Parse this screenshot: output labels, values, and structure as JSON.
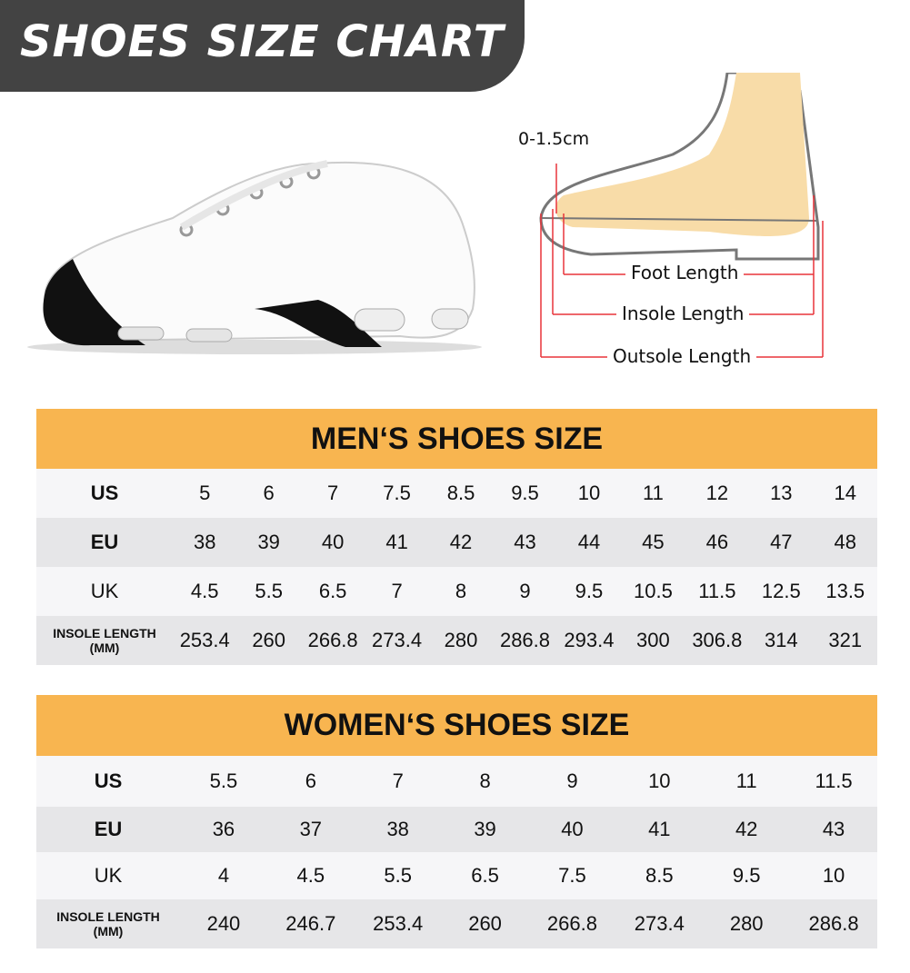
{
  "header": {
    "title": "SHOES SIZE CHART"
  },
  "diagram": {
    "toe_gap": "0-1.5cm",
    "foot_length": "Foot Length",
    "insole_length": "Insole Length",
    "outsole_length": "Outsole Length"
  },
  "colors": {
    "banner": "#434343",
    "table_header": "#F8B550",
    "row_light": "#F6F6F8",
    "row_dark": "#E6E6E8",
    "measure_lines": "#E8343A",
    "foot": "#F8DCA8"
  },
  "men": {
    "title": "MEN‘S SHOES SIZE",
    "rows": [
      {
        "label": "US",
        "values": [
          "5",
          "6",
          "7",
          "7.5",
          "8.5",
          "9.5",
          "10",
          "11",
          "12",
          "13",
          "14"
        ]
      },
      {
        "label": "EU",
        "values": [
          "38",
          "39",
          "40",
          "41",
          "42",
          "43",
          "44",
          "45",
          "46",
          "47",
          "48"
        ]
      },
      {
        "label": "UK",
        "values": [
          "4.5",
          "5.5",
          "6.5",
          "7",
          "8",
          "9",
          "9.5",
          "10.5",
          "11.5",
          "12.5",
          "13.5"
        ]
      },
      {
        "label": "INSOLE LENGTH",
        "sublabel": "(MM)",
        "values": [
          "253.4",
          "260",
          "266.8",
          "273.4",
          "280",
          "286.8",
          "293.4",
          "300",
          "306.8",
          "314",
          "321"
        ]
      }
    ]
  },
  "women": {
    "title": "WOMEN‘S SHOES SIZE",
    "rows": [
      {
        "label": "US",
        "values": [
          "5.5",
          "6",
          "7",
          "8",
          "9",
          "10",
          "11",
          "11.5"
        ]
      },
      {
        "label": "EU",
        "values": [
          "36",
          "37",
          "38",
          "39",
          "40",
          "41",
          "42",
          "43"
        ]
      },
      {
        "label": "UK",
        "values": [
          "4",
          "4.5",
          "5.5",
          "6.5",
          "7.5",
          "8.5",
          "9.5",
          "10"
        ]
      },
      {
        "label": "INSOLE LENGTH",
        "sublabel": "(MM)",
        "values": [
          "240",
          "246.7",
          "253.4",
          "260",
          "266.8",
          "273.4",
          "280",
          "286.8"
        ]
      }
    ]
  }
}
